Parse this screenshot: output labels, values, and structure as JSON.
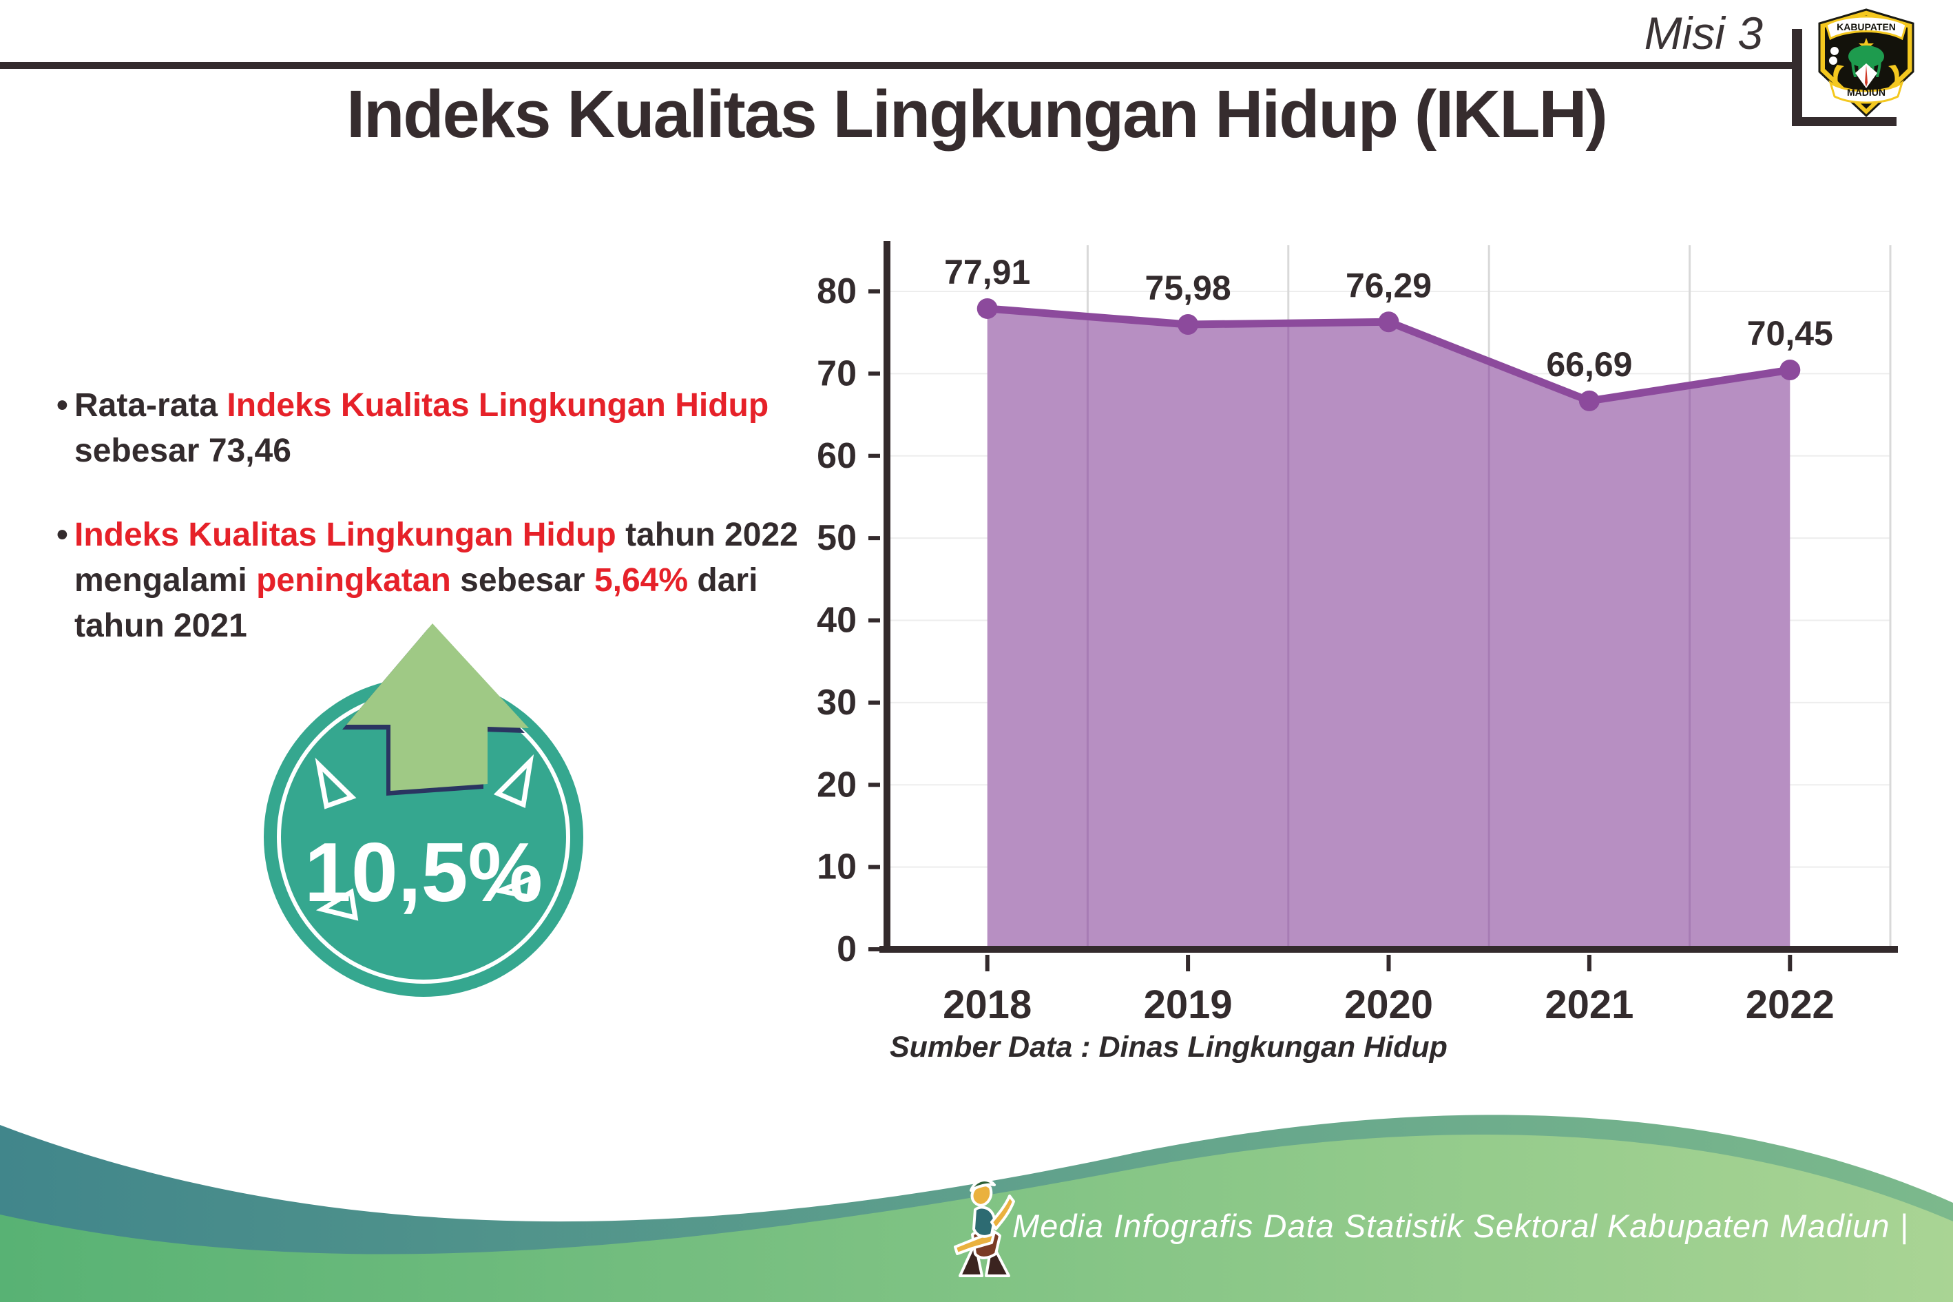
{
  "header": {
    "misi_label": "Misi 3",
    "logo": {
      "top_text": "KABUPATEN",
      "bottom_text": "MADIUN"
    }
  },
  "title": "Indeks Kualitas Lingkungan Hidup (IKLH)",
  "bullets": [
    {
      "bullet_char": "•",
      "lines": [
        [
          {
            "text": "Rata-rata ",
            "tone": "dark"
          },
          {
            "text": "Indeks Kualitas Lingkungan Hidup",
            "tone": "red"
          }
        ],
        [
          {
            "text": "sebesar 73,46",
            "tone": "dark"
          }
        ]
      ]
    },
    {
      "bullet_char": "•",
      "lines": [
        [
          {
            "text": "Indeks Kualitas Lingkungan Hidup",
            "tone": "red"
          },
          {
            "text": " tahun 2022",
            "tone": "dark"
          }
        ],
        [
          {
            "text": "mengalami ",
            "tone": "dark"
          },
          {
            "text": "peningkatan",
            "tone": "red"
          },
          {
            "text": " sebesar ",
            "tone": "dark"
          },
          {
            "text": "5,64%",
            "tone": "red"
          },
          {
            "text": " dari",
            "tone": "dark"
          }
        ],
        [
          {
            "text": "tahun 2021",
            "tone": "dark"
          }
        ]
      ]
    }
  ],
  "badge": {
    "value": "10,5%"
  },
  "chart_data": {
    "type": "area",
    "categories": [
      "2018",
      "2019",
      "2020",
      "2021",
      "2022"
    ],
    "values": [
      77.91,
      75.98,
      76.29,
      66.69,
      70.45
    ],
    "value_labels": [
      "77,91",
      "75,98",
      "76,29",
      "66,69",
      "70,45"
    ],
    "title": "",
    "xlabel": "",
    "ylabel": "",
    "ylim": [
      0,
      80
    ],
    "y_ticks": [
      0,
      10,
      20,
      30,
      40,
      50,
      60,
      70,
      80
    ],
    "grid": true,
    "legend": "none"
  },
  "source_note": "Sumber Data : Dinas Lingkungan Hidup",
  "footer": {
    "credit": "Media Infografis Data Statistik Sektoral Kabupaten Madiun |"
  },
  "colors": {
    "text_dark": "#332b2d",
    "accent_red": "#e62129",
    "line_purple": "#8c4a9c",
    "area_purple": "#b78fc2",
    "grid_on_fill": "#a77cb4",
    "grid_vertical": "#d9d9d9",
    "grid_horizontal": "#ededed",
    "axis_dark": "#332a2c",
    "badge_teal": "#35a78f",
    "arrow_green": "#9fc985",
    "arrow_navy": "#2a3561",
    "footer_teal_1": "#41868b",
    "footer_teal_2": "#7cb98c",
    "footer_green_1": "#58b274",
    "footer_green_2": "#a9d494",
    "logo_yellow": "#f4c81f",
    "logo_green": "#1e9b4e"
  }
}
